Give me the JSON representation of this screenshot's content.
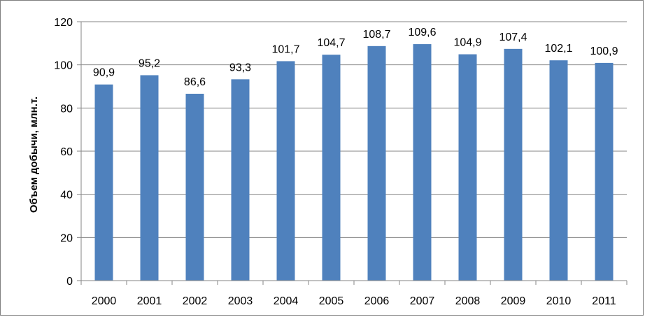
{
  "chart_data": {
    "type": "bar",
    "title": "",
    "xlabel": "",
    "ylabel": "Объем добычи, млн.т.",
    "categories": [
      "2000",
      "2001",
      "2002",
      "2003",
      "2004",
      "2005",
      "2006",
      "2007",
      "2008",
      "2009",
      "2010",
      "2011"
    ],
    "values": [
      90.9,
      95.2,
      86.6,
      93.3,
      101.7,
      104.7,
      108.7,
      109.6,
      104.9,
      107.4,
      102.1,
      100.9
    ],
    "value_labels": [
      "90,9",
      "95,2",
      "86,6",
      "93,3",
      "101,7",
      "104,7",
      "108,7",
      "109,6",
      "104,9",
      "107,4",
      "102,1",
      "100,9"
    ],
    "ylim": [
      0,
      120
    ],
    "yticks": [
      0,
      20,
      40,
      60,
      80,
      100,
      120
    ],
    "ytick_labels": [
      "0",
      "20",
      "40",
      "60",
      "80",
      "100",
      "120"
    ],
    "grid": true,
    "legend": "none",
    "bar_color": "#4f81bd",
    "grid_color": "#868686"
  }
}
